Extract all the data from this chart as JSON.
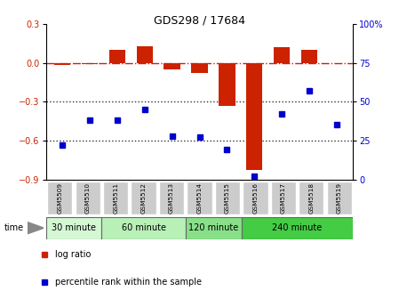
{
  "title": "GDS298 / 17684",
  "samples": [
    "GSM5509",
    "GSM5510",
    "GSM5511",
    "GSM5512",
    "GSM5513",
    "GSM5514",
    "GSM5515",
    "GSM5516",
    "GSM5517",
    "GSM5518",
    "GSM5519"
  ],
  "log_ratio": [
    -0.02,
    -0.01,
    0.1,
    0.13,
    -0.05,
    -0.08,
    -0.33,
    -0.83,
    0.12,
    0.1,
    0.0
  ],
  "percentile": [
    22,
    38,
    38,
    45,
    28,
    27,
    19,
    2,
    42,
    57,
    35
  ],
  "bar_color": "#cc2200",
  "dot_color": "#0000cc",
  "ylim_left": [
    -0.9,
    0.3
  ],
  "ylim_right": [
    0,
    100
  ],
  "yticks_left": [
    -0.9,
    -0.6,
    -0.3,
    0.0,
    0.3
  ],
  "yticks_right": [
    0,
    25,
    50,
    75,
    100
  ],
  "time_groups": [
    {
      "label": "30 minute",
      "start": 0,
      "end": 2
    },
    {
      "label": "60 minute",
      "start": 2,
      "end": 5
    },
    {
      "label": "120 minute",
      "start": 5,
      "end": 7
    },
    {
      "label": "240 minute",
      "start": 7,
      "end": 11
    }
  ],
  "time_colors": [
    "#d4f7d4",
    "#b8f0b8",
    "#88e088",
    "#44cc44"
  ],
  "legend_log_ratio": "log ratio",
  "legend_percentile": "percentile rank within the sample",
  "dotted_line_color": "#333333",
  "dashdot_line_color": "#cc2200",
  "sample_box_color": "#cccccc"
}
